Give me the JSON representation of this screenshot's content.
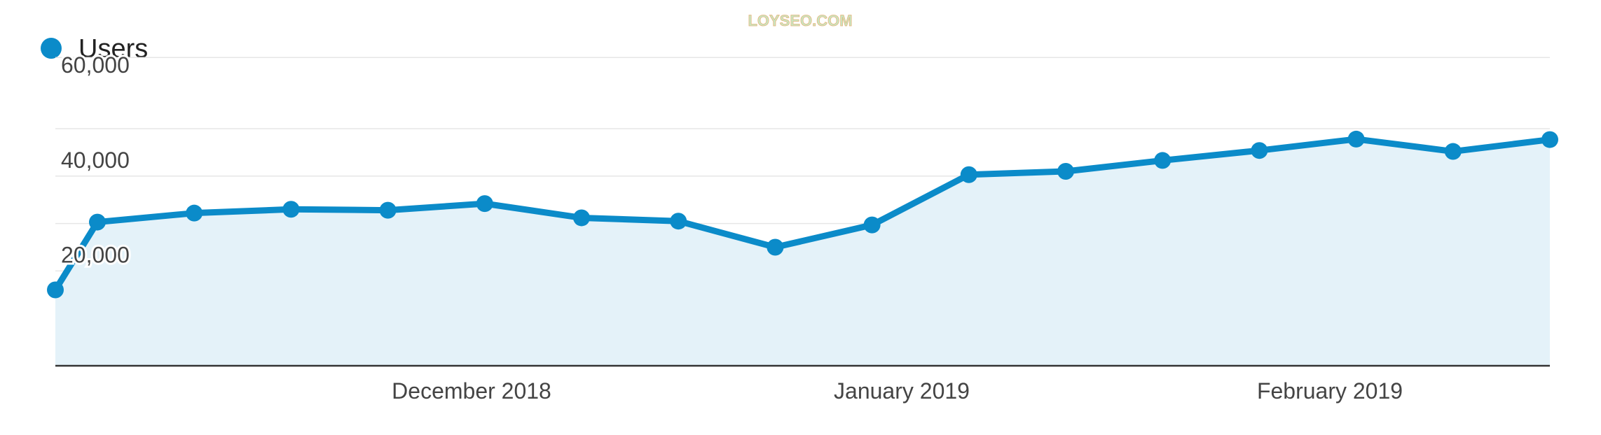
{
  "watermark": "LOYSEO.COM",
  "colors": {
    "series": "#0b8bc9",
    "area": "#e4f2f9",
    "grid": "#e6e6e6",
    "axis": "#333333"
  },
  "chart_data": {
    "type": "area",
    "x_unit": "week",
    "x": [
      "2018-11-04",
      "2018-11-11",
      "2018-11-18",
      "2018-11-25",
      "2018-12-02",
      "2018-12-09",
      "2018-12-16",
      "2018-12-23",
      "2018-12-30",
      "2019-01-06",
      "2019-01-13",
      "2019-01-20",
      "2019-01-27",
      "2019-02-03",
      "2019-02-10",
      "2019-02-17",
      "2019-02-24"
    ],
    "series": [
      {
        "name": "Users",
        "values": [
          16000,
          30300,
          32200,
          33000,
          32800,
          34200,
          31200,
          30500,
          25000,
          29700,
          40300,
          41000,
          43300,
          45400,
          47800,
          45200,
          47700
        ]
      }
    ],
    "x_tick_labels": [
      "December 2018",
      "January 2019",
      "February 2019"
    ],
    "y_ticks": [
      20000,
      40000,
      60000
    ],
    "y_tick_labels": [
      "20,000",
      "40,000",
      "60,000"
    ],
    "ylim": [
      0,
      60000
    ],
    "grid": true,
    "legend": {
      "position": "top-left",
      "entries": [
        "Users"
      ]
    }
  }
}
